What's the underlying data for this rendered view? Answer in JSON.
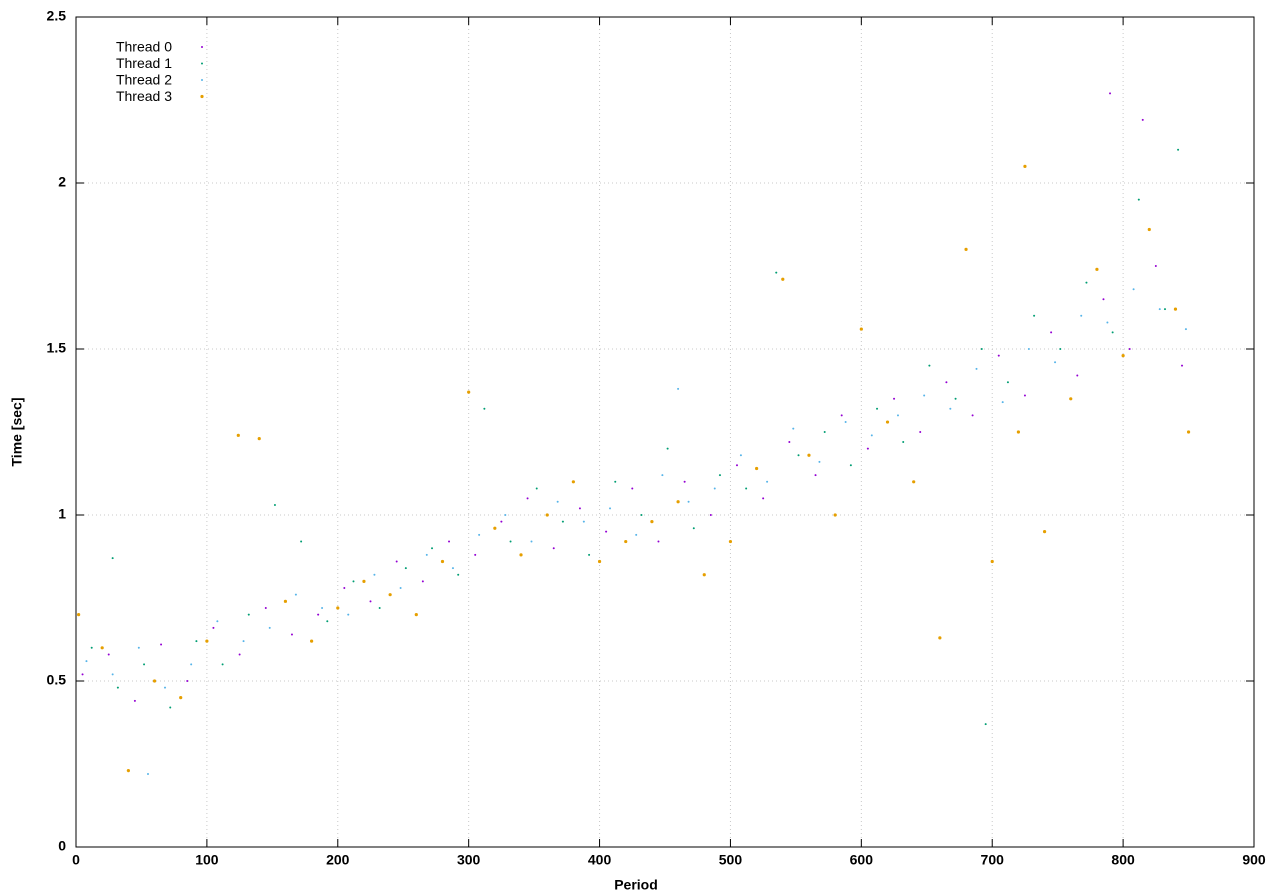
{
  "chart_data": {
    "type": "scatter",
    "xlabel": "Period",
    "ylabel": "Time [sec]",
    "xlim": [
      0,
      900
    ],
    "xticks": [
      0,
      100,
      200,
      300,
      400,
      500,
      600,
      700,
      800,
      900
    ],
    "ylim": [
      0,
      2.5
    ],
    "yticks": [
      0,
      0.5,
      1,
      1.5,
      2,
      2.5
    ],
    "grid": true,
    "legend": "top left",
    "series": [
      {
        "name": "Thread 0",
        "color": "#9400d3",
        "x": [
          5,
          25,
          45,
          65,
          85,
          105,
          125,
          145,
          165,
          185,
          205,
          225,
          245,
          265,
          285,
          305,
          325,
          345,
          365,
          385,
          405,
          425,
          445,
          465,
          485,
          505,
          525,
          545,
          565,
          585,
          605,
          625,
          645,
          665,
          685,
          705,
          725,
          745,
          765,
          785,
          805,
          825,
          845,
          790,
          815
        ],
        "values": [
          0.52,
          0.58,
          0.44,
          0.61,
          0.5,
          0.66,
          0.58,
          0.72,
          0.64,
          0.7,
          0.78,
          0.74,
          0.86,
          0.8,
          0.92,
          0.88,
          0.98,
          1.05,
          0.9,
          1.02,
          0.95,
          1.08,
          0.92,
          1.1,
          1.0,
          1.15,
          1.05,
          1.22,
          1.12,
          1.3,
          1.2,
          1.35,
          1.25,
          1.4,
          1.3,
          1.48,
          1.36,
          1.55,
          1.42,
          1.65,
          1.5,
          1.75,
          1.45,
          2.27,
          2.19
        ]
      },
      {
        "name": "Thread 1",
        "color": "#009e73",
        "x": [
          12,
          32,
          52,
          72,
          92,
          112,
          132,
          152,
          172,
          192,
          212,
          232,
          252,
          272,
          292,
          312,
          332,
          352,
          372,
          392,
          412,
          432,
          452,
          472,
          492,
          512,
          535,
          552,
          572,
          592,
          612,
          632,
          652,
          672,
          692,
          712,
          732,
          752,
          772,
          792,
          812,
          832,
          842,
          28,
          695
        ],
        "values": [
          0.6,
          0.48,
          0.55,
          0.42,
          0.62,
          0.55,
          0.7,
          1.03,
          0.92,
          0.68,
          0.8,
          0.72,
          0.84,
          0.9,
          0.82,
          1.32,
          0.92,
          1.08,
          0.98,
          0.88,
          1.1,
          1.0,
          1.2,
          0.96,
          1.12,
          1.08,
          1.73,
          1.18,
          1.25,
          1.15,
          1.32,
          1.22,
          1.45,
          1.35,
          1.5,
          1.4,
          1.6,
          1.5,
          1.7,
          1.55,
          1.95,
          1.62,
          2.1,
          0.87,
          0.37
        ]
      },
      {
        "name": "Thread 2",
        "color": "#56b4e9",
        "x": [
          8,
          28,
          48,
          68,
          88,
          108,
          128,
          148,
          168,
          188,
          208,
          228,
          248,
          268,
          288,
          308,
          328,
          348,
          368,
          388,
          408,
          428,
          448,
          468,
          488,
          508,
          528,
          548,
          568,
          588,
          608,
          628,
          648,
          668,
          688,
          708,
          728,
          748,
          768,
          788,
          808,
          828,
          848,
          55,
          460
        ],
        "values": [
          0.56,
          0.52,
          0.6,
          0.48,
          0.55,
          0.68,
          0.62,
          0.66,
          0.76,
          0.72,
          0.7,
          0.82,
          0.78,
          0.88,
          0.84,
          0.94,
          1.0,
          0.92,
          1.04,
          0.98,
          1.02,
          0.94,
          1.12,
          1.04,
          1.08,
          1.18,
          1.1,
          1.26,
          1.16,
          1.28,
          1.24,
          1.3,
          1.36,
          1.32,
          1.44,
          1.34,
          1.5,
          1.46,
          1.6,
          1.58,
          1.68,
          1.62,
          1.56,
          0.22,
          1.38
        ]
      },
      {
        "name": "Thread 3",
        "color": "#e69f00",
        "x": [
          2,
          20,
          40,
          60,
          80,
          100,
          124,
          140,
          160,
          180,
          200,
          220,
          240,
          260,
          280,
          300,
          320,
          340,
          360,
          380,
          400,
          420,
          440,
          460,
          480,
          500,
          520,
          540,
          560,
          580,
          600,
          620,
          640,
          660,
          680,
          700,
          720,
          740,
          760,
          780,
          800,
          820,
          840,
          850,
          725
        ],
        "values": [
          0.7,
          0.6,
          0.23,
          0.5,
          0.45,
          0.62,
          1.24,
          1.23,
          0.74,
          0.62,
          0.72,
          0.8,
          0.76,
          0.7,
          0.86,
          1.37,
          0.96,
          0.88,
          1.0,
          1.1,
          0.86,
          0.92,
          0.98,
          1.04,
          0.82,
          0.92,
          1.14,
          1.71,
          1.18,
          1.0,
          1.56,
          1.28,
          1.1,
          0.63,
          1.8,
          0.86,
          1.25,
          0.95,
          1.35,
          1.74,
          1.48,
          1.86,
          1.62,
          1.25,
          2.05
        ]
      }
    ]
  }
}
